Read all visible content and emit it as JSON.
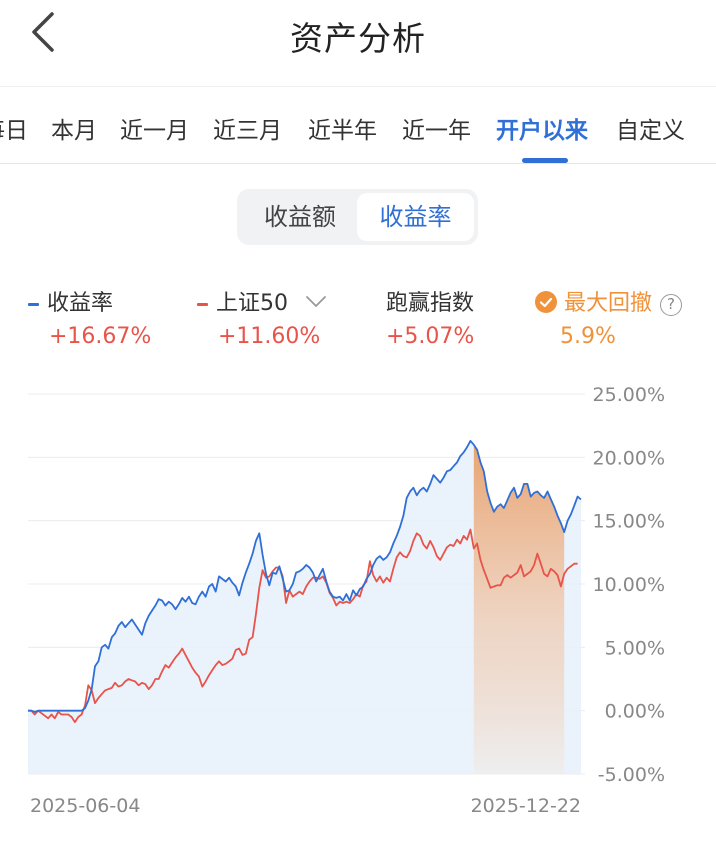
{
  "header": {
    "title": "资产分析",
    "back_icon": "chevron-left-icon"
  },
  "period_tabs": {
    "items": [
      "每日",
      "本月",
      "近一月",
      "近三月",
      "近半年",
      "近一年",
      "开户以来",
      "自定义"
    ],
    "active": "开户以来"
  },
  "metric_toggle": {
    "options": [
      "收益额",
      "收益率"
    ],
    "active": "收益率"
  },
  "legend": {
    "series1": {
      "label": "收益率",
      "value": "+16.67%"
    },
    "series2": {
      "label": "上证50",
      "value": "+11.60%",
      "icon": "chevron-down-icon"
    },
    "excess": {
      "label": "跑赢指数",
      "value": "+5.07%"
    },
    "drawdown": {
      "label": "最大回撤",
      "value": "5.9%",
      "check_icon": "check-circle-icon",
      "help_icon": "question-circle-icon",
      "help_text": "?"
    }
  },
  "colors": {
    "accent": "#2f6fd6",
    "series1": "#2f6fd6",
    "series2": "#e8534a",
    "gain": "#e8534a",
    "drawdown": "#f0923a",
    "area_fill": "#e6f0fc"
  },
  "chart_data": {
    "type": "line",
    "y_ticks": [
      "25.00%",
      "20.00%",
      "15.00%",
      "10.00%",
      "5.00%",
      "0.00%",
      "-5.00%"
    ],
    "ylim": [
      -5,
      25
    ],
    "x_start_label": "2025-06-04",
    "x_end_label": "2025-12-22",
    "grid": true,
    "drawdown_range": [
      0.805,
      0.97
    ],
    "series": [
      {
        "name": "收益率",
        "color": "#2f6fd6",
        "values": [
          0,
          0,
          -0.1,
          0,
          0,
          0,
          0,
          0,
          0,
          0,
          0,
          0,
          0,
          0,
          0,
          0,
          0,
          0.2,
          0.8,
          1.7,
          3.5,
          3.9,
          5.0,
          5.2,
          4.9,
          5.8,
          6.1,
          6.7,
          7.0,
          6.6,
          6.9,
          7.2,
          6.8,
          6.4,
          6.0,
          6.9,
          7.5,
          7.9,
          8.3,
          8.8,
          8.7,
          8.3,
          8.6,
          8.4,
          8.0,
          8.4,
          8.9,
          8.6,
          9.0,
          8.5,
          8.4,
          9.0,
          9.4,
          9.0,
          9.8,
          10.0,
          9.4,
          10.6,
          10.4,
          10.2,
          10.5,
          10.1,
          9.8,
          9.1,
          10.1,
          10.9,
          11.6,
          12.4,
          13.4,
          14.0,
          12.3,
          10.8,
          9.9,
          10.9,
          10.8,
          11.4,
          10.4,
          9.4,
          9.5,
          10.0,
          10.9,
          11.0,
          11.2,
          11.5,
          11.3,
          10.9,
          10.2,
          10.7,
          11.2,
          10.2,
          9.4,
          9.0,
          8.9,
          9.0,
          8.7,
          9.2,
          8.7,
          9.5,
          9.1,
          9.6,
          9.8,
          10.4,
          10.8,
          11.5,
          12.0,
          12.2,
          11.9,
          12.1,
          12.5,
          13.2,
          13.8,
          14.5,
          15.4,
          16.8,
          17.3,
          17.6,
          17.0,
          17.4,
          17.6,
          17.3,
          17.9,
          18.6,
          18.3,
          18.0,
          18.4,
          18.9,
          19.0,
          19.3,
          19.6,
          20.1,
          20.4,
          20.8,
          21.3,
          21.0,
          20.6,
          19.6,
          18.9,
          17.3,
          16.4,
          15.7,
          16.1,
          16.3,
          16.0,
          16.6,
          17.2,
          17.6,
          16.8,
          17.1,
          17.9,
          17.9,
          16.9,
          17.2,
          17.3,
          17.0,
          16.8,
          17.3,
          16.7,
          16.1,
          15.4,
          14.8,
          14.1,
          15.0,
          15.5,
          16.2,
          16.9,
          16.67
        ]
      },
      {
        "name": "上证50",
        "color": "#e8534a",
        "values": [
          0,
          0,
          -0.3,
          0,
          -0.2,
          -0.4,
          -0.6,
          -0.3,
          -0.6,
          -0.1,
          -0.3,
          -0.3,
          -0.3,
          -0.5,
          -0.9,
          -0.5,
          -0.3,
          0.4,
          2.0,
          1.6,
          0.6,
          1.0,
          1.3,
          1.6,
          1.7,
          1.8,
          2.2,
          1.9,
          2.0,
          2.3,
          2.5,
          2.4,
          2.3,
          2.0,
          2.2,
          2.1,
          1.7,
          2.0,
          2.5,
          2.5,
          3.1,
          3.6,
          3.4,
          3.8,
          4.2,
          4.5,
          4.9,
          4.4,
          3.9,
          3.4,
          3.0,
          2.7,
          1.9,
          2.3,
          2.8,
          3.2,
          3.6,
          3.9,
          3.6,
          3.7,
          3.9,
          4.1,
          4.8,
          4.9,
          4.4,
          4.5,
          5.6,
          5.8,
          7.6,
          9.7,
          11.1,
          10.5,
          10.6,
          11.0,
          11.3,
          11.3,
          10.6,
          8.5,
          9.5,
          9.0,
          9.2,
          9.4,
          9.2,
          9.8,
          10.2,
          10.5,
          10.5,
          10.4,
          10.6,
          10.1,
          9.3,
          8.9,
          8.3,
          8.6,
          8.5,
          8.6,
          8.5,
          8.8,
          9.2,
          9.0,
          9.9,
          10.2,
          11.8,
          10.7,
          10.2,
          10.6,
          10.1,
          10.5,
          10.2,
          11.2,
          12.1,
          12.5,
          12.2,
          12.1,
          12.6,
          13.4,
          14.0,
          13.8,
          13.1,
          12.8,
          13.4,
          12.9,
          12.2,
          11.9,
          12.4,
          12.9,
          13.1,
          13.0,
          13.5,
          13.2,
          13.8,
          13.5,
          14.3,
          12.8,
          13.2,
          11.9,
          11.1,
          10.4,
          9.7,
          9.8,
          9.9,
          9.9,
          10.5,
          10.7,
          10.5,
          10.7,
          10.9,
          11.5,
          10.6,
          10.8,
          11.0,
          11.5,
          12.4,
          11.6,
          10.8,
          10.6,
          11.2,
          11.0,
          10.7,
          9.8,
          10.8,
          11.2,
          11.4,
          11.6,
          11.6
        ]
      }
    ]
  }
}
